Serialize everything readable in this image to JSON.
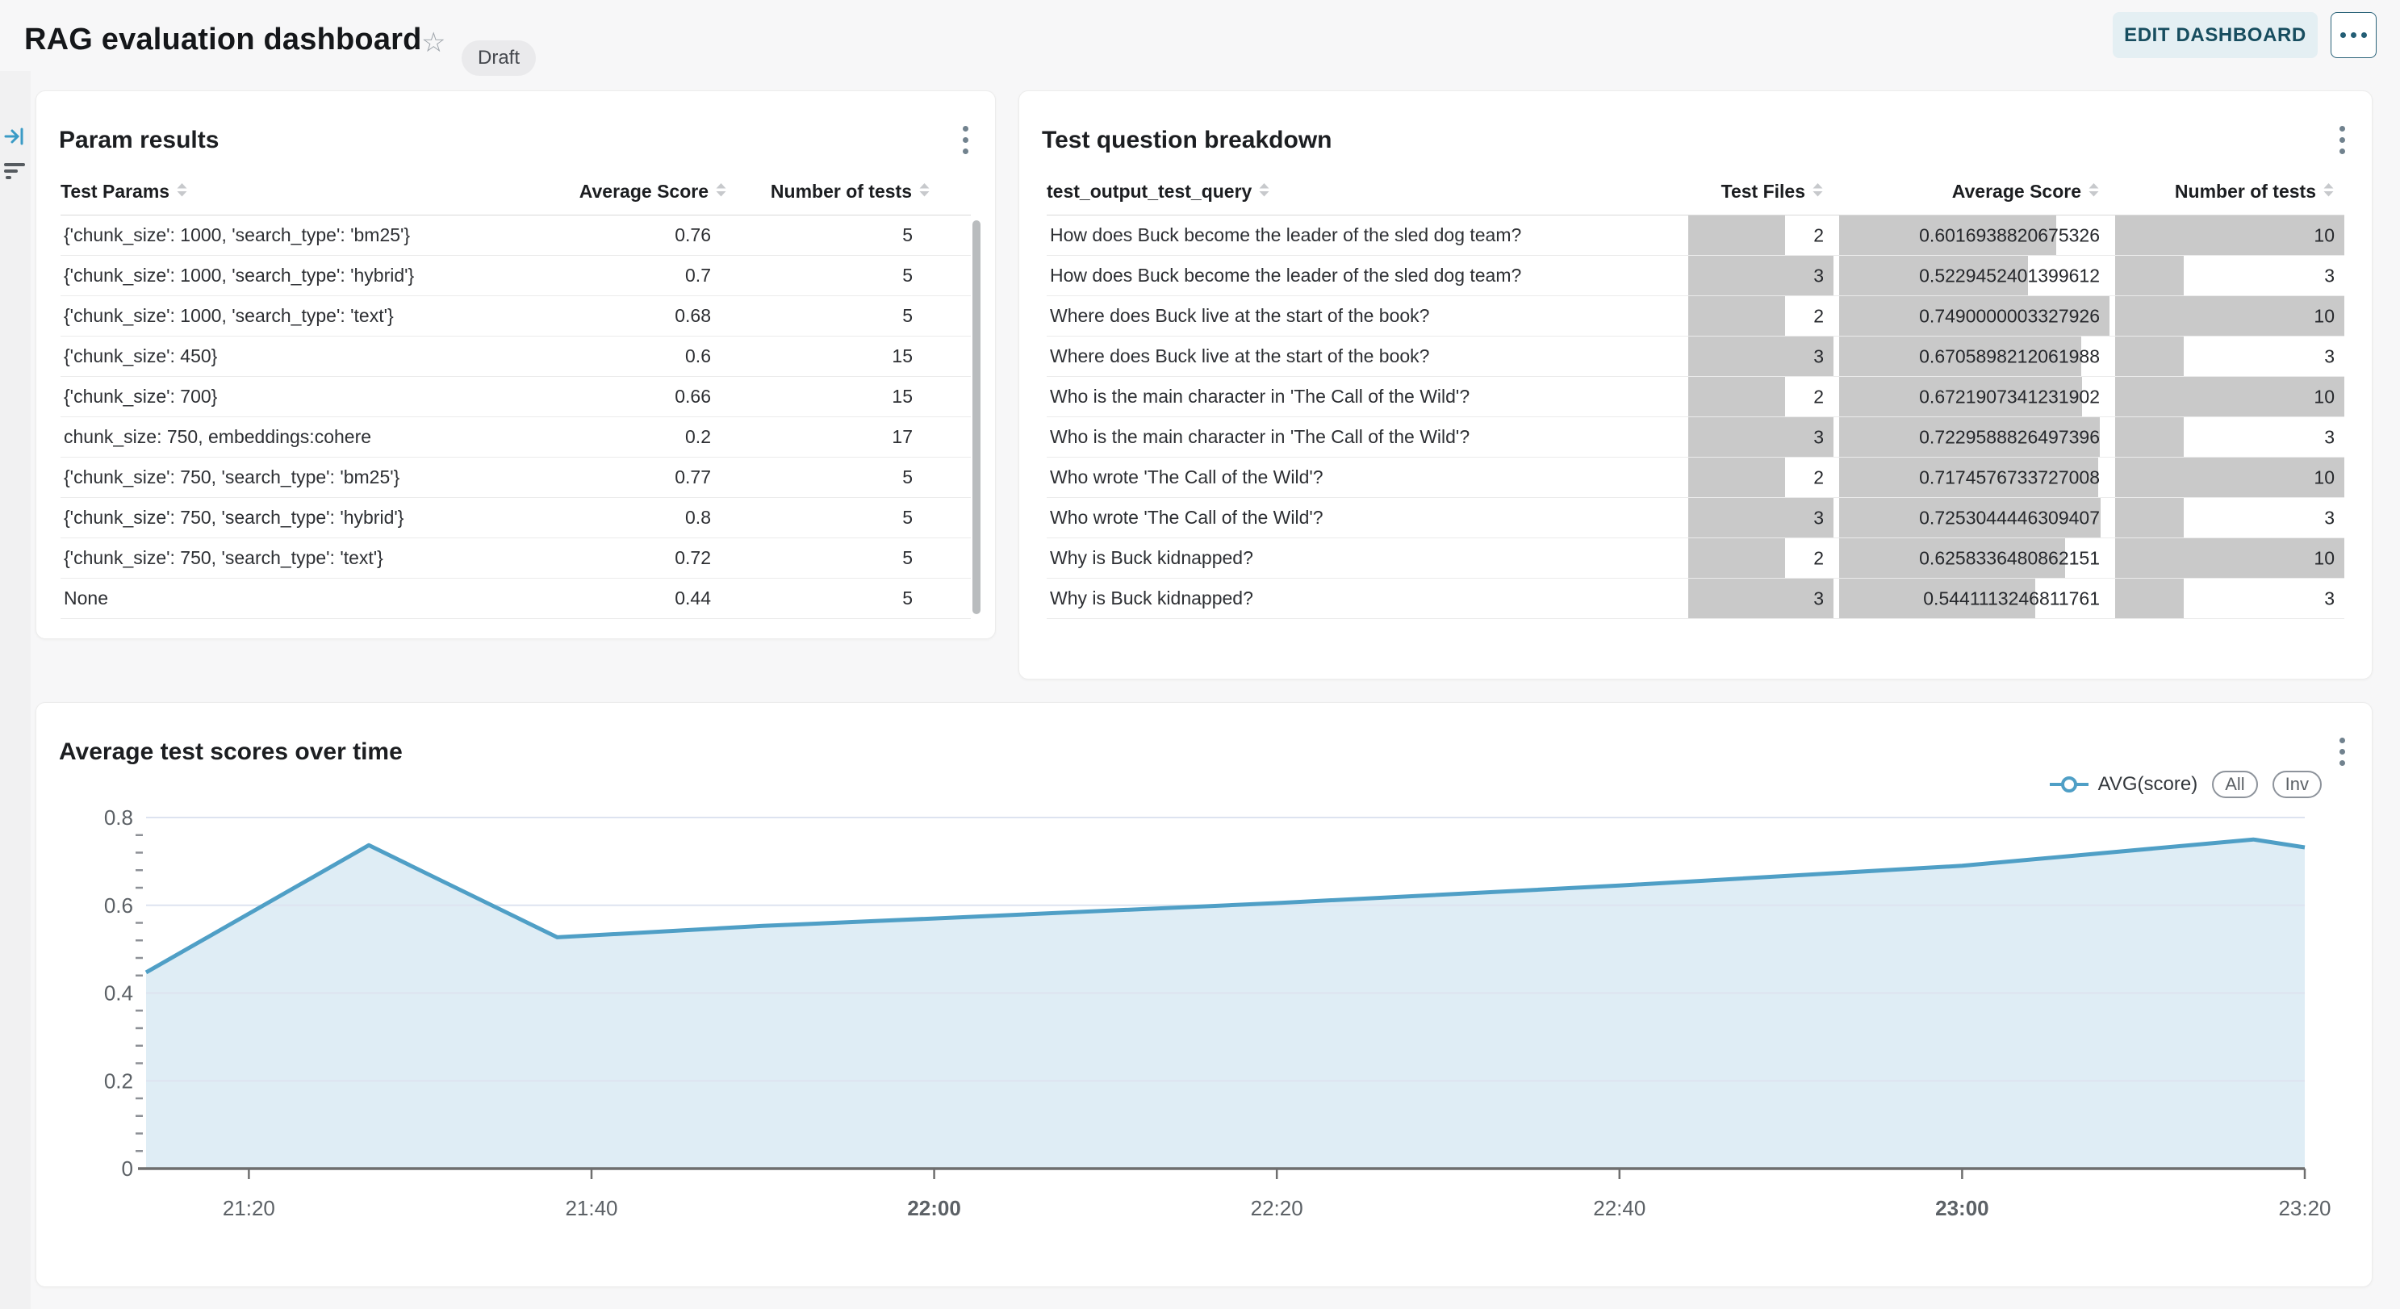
{
  "header": {
    "title": "RAG evaluation dashboard",
    "status_badge": "Draft",
    "edit_button": "EDIT DASHBOARD"
  },
  "param_results": {
    "title": "Param results",
    "columns": [
      "Test Params",
      "Average Score",
      "Number of tests"
    ],
    "rows": [
      {
        "test_params": "{'chunk_size': 1000, 'search_type': 'bm25'}",
        "average_score": "0.76",
        "number_of_tests": "5"
      },
      {
        "test_params": "{'chunk_size': 1000, 'search_type': 'hybrid'}",
        "average_score": "0.7",
        "number_of_tests": "5"
      },
      {
        "test_params": "{'chunk_size': 1000, 'search_type': 'text'}",
        "average_score": "0.68",
        "number_of_tests": "5"
      },
      {
        "test_params": "{'chunk_size': 450}",
        "average_score": "0.6",
        "number_of_tests": "15"
      },
      {
        "test_params": "{'chunk_size': 700}",
        "average_score": "0.66",
        "number_of_tests": "15"
      },
      {
        "test_params": "chunk_size: 750, embeddings:cohere",
        "average_score": "0.2",
        "number_of_tests": "17"
      },
      {
        "test_params": "{'chunk_size': 750, 'search_type': 'bm25'}",
        "average_score": "0.77",
        "number_of_tests": "5"
      },
      {
        "test_params": "{'chunk_size': 750, 'search_type': 'hybrid'}",
        "average_score": "0.8",
        "number_of_tests": "5"
      },
      {
        "test_params": "{'chunk_size': 750, 'search_type': 'text'}",
        "average_score": "0.72",
        "number_of_tests": "5"
      },
      {
        "test_params": "None",
        "average_score": "0.44",
        "number_of_tests": "5"
      }
    ]
  },
  "question_breakdown": {
    "title": "Test question breakdown",
    "columns": [
      "test_output_test_query",
      "Test Files",
      "Average Score",
      "Number of tests"
    ],
    "bar_max": {
      "test_files": 3,
      "average_score": 0.7490000003327926,
      "number_of_tests": 10
    },
    "rows": [
      {
        "query": "How does Buck become the leader of the sled dog team?",
        "test_files": "2",
        "average_score": "0.6016938820675326",
        "number_of_tests": "10"
      },
      {
        "query": "How does Buck become the leader of the sled dog team?",
        "test_files": "3",
        "average_score": "0.5229452401399612",
        "number_of_tests": "3"
      },
      {
        "query": "Where does Buck live at the start of the book?",
        "test_files": "2",
        "average_score": "0.7490000003327926",
        "number_of_tests": "10"
      },
      {
        "query": "Where does Buck live at the start of the book?",
        "test_files": "3",
        "average_score": "0.6705898212061988",
        "number_of_tests": "3"
      },
      {
        "query": "Who is the main character in 'The Call of the Wild'?",
        "test_files": "2",
        "average_score": "0.6721907341231902",
        "number_of_tests": "10"
      },
      {
        "query": "Who is the main character in 'The Call of the Wild'?",
        "test_files": "3",
        "average_score": "0.7229588826497396",
        "number_of_tests": "3"
      },
      {
        "query": "Who wrote 'The Call of the Wild'?",
        "test_files": "2",
        "average_score": "0.7174576733727008",
        "number_of_tests": "10"
      },
      {
        "query": "Who wrote 'The Call of the Wild'?",
        "test_files": "3",
        "average_score": "0.7253044446309407",
        "number_of_tests": "3"
      },
      {
        "query": "Why is Buck kidnapped?",
        "test_files": "2",
        "average_score": "0.6258336480862151",
        "number_of_tests": "10"
      },
      {
        "query": "Why is Buck kidnapped?",
        "test_files": "3",
        "average_score": "0.5441113246811761",
        "number_of_tests": "3"
      }
    ]
  },
  "chart": {
    "title": "Average test scores over time",
    "legend": {
      "series_label": "AVG(score)",
      "pills": [
        "All",
        "Inv"
      ]
    }
  },
  "chart_data": {
    "type": "area",
    "title": "Average test scores over time",
    "series": [
      {
        "name": "AVG(score)",
        "points": [
          [
            "21:14",
            0.447
          ],
          [
            "21:27",
            0.737
          ],
          [
            "21:38",
            0.527
          ],
          [
            "21:50",
            0.553
          ],
          [
            "22:00",
            0.57
          ],
          [
            "22:20",
            0.605
          ],
          [
            "22:40",
            0.645
          ],
          [
            "23:00",
            0.69
          ],
          [
            "23:17",
            0.75
          ],
          [
            "23:20",
            0.732
          ]
        ]
      }
    ],
    "x_range": [
      "21:14",
      "23:20"
    ],
    "x_ticks": [
      "21:20",
      "21:40",
      "22:00",
      "22:20",
      "22:40",
      "23:00",
      "23:20"
    ],
    "bold_x_ticks": [
      "22:00",
      "23:00"
    ],
    "y_ticks": [
      0,
      0.2,
      0.4,
      0.6,
      0.8
    ],
    "y_minor_step": 0.04,
    "ylim": [
      0,
      0.8
    ],
    "grid": true,
    "legend_position": "top-right",
    "line_color": "#4f9fc6",
    "fill_color": "rgba(171,208,230,0.38)",
    "grid_color": "#dde3f0",
    "axis_color": "#6e6e6e",
    "tick_label_color": "#5c6166"
  }
}
